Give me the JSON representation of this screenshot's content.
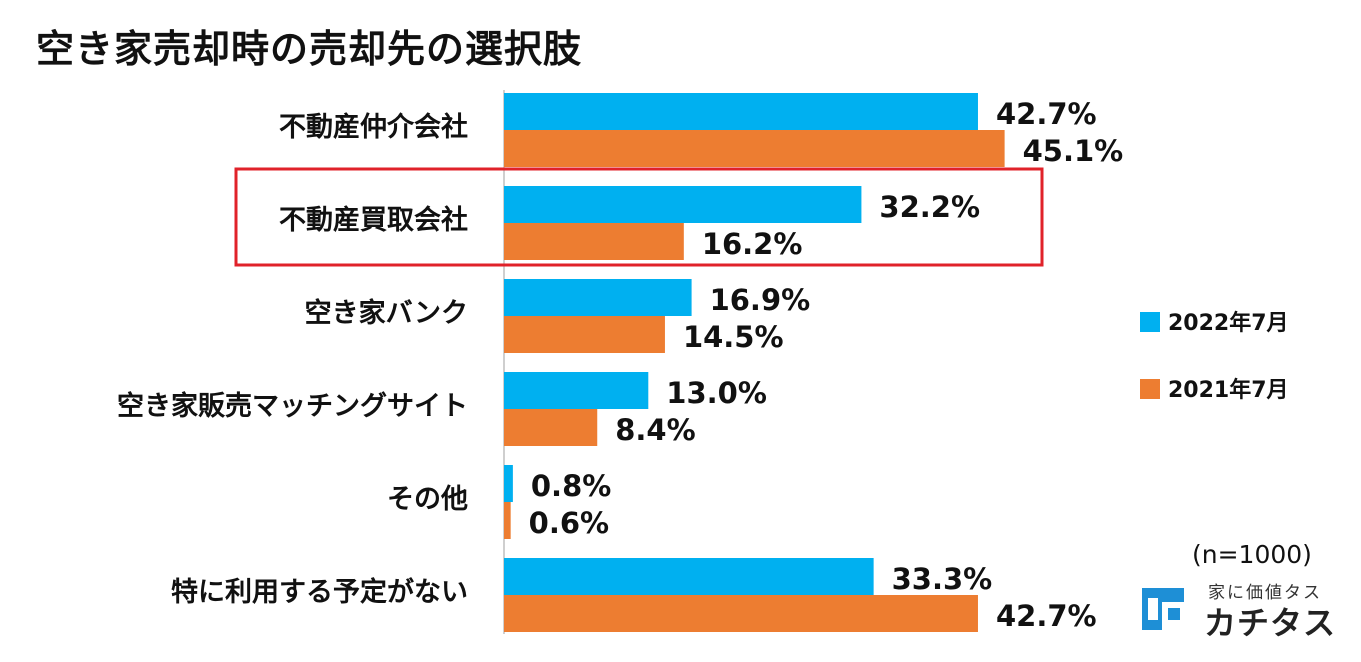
{
  "title": "空き家売却時の売却先の選択肢",
  "sample_note": "(n=1000)",
  "colors": {
    "series_2022": "#00B0F0",
    "series_2021": "#ED7D31",
    "highlight": "#E0222A",
    "axis": "#BFBFBF"
  },
  "highlighted_category": "不動産買取会社",
  "logo": {
    "tagline": "家に価値タス",
    "name": "カチタス"
  },
  "chart_data": {
    "type": "bar",
    "orientation": "horizontal",
    "title": "空き家売却時の売却先の選択肢",
    "categories": [
      "不動産仲介会社",
      "不動産買取会社",
      "空き家バンク",
      "空き家販売マッチングサイト",
      "その他",
      "特に利用する予定がない"
    ],
    "series": [
      {
        "name": "2022年7月",
        "values": [
          42.7,
          32.2,
          16.9,
          13.0,
          0.8,
          33.3
        ],
        "labels": [
          "42.7%",
          "32.2%",
          "16.9%",
          "13.0%",
          "0.8%",
          "33.3%"
        ]
      },
      {
        "name": "2021年7月",
        "values": [
          45.1,
          16.2,
          14.5,
          8.4,
          0.6,
          42.7
        ],
        "labels": [
          "45.1%",
          "16.2%",
          "14.5%",
          "8.4%",
          "0.6%",
          "42.7%"
        ]
      }
    ],
    "xlim": [
      0,
      100
    ],
    "unit": "%",
    "legend_position": "right",
    "grid": false
  }
}
